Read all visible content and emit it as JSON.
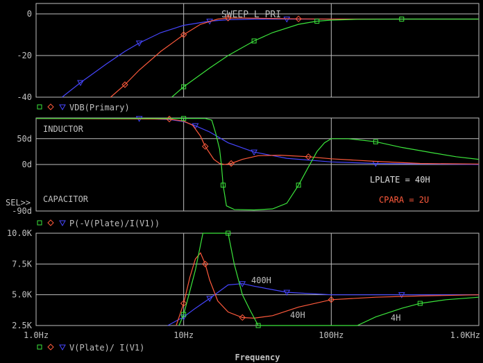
{
  "colors": {
    "background": "#000000",
    "frame": "#c0c0c0",
    "green": "#3ce63c",
    "red": "#ff5a3c",
    "blue": "#4646ff"
  },
  "sel_label": "SEL>>",
  "x_axis": {
    "label": "Frequency",
    "log": true,
    "range": [
      1,
      1000
    ],
    "ticks": [
      {
        "value": 1,
        "label": "1.0Hz"
      },
      {
        "value": 10,
        "label": "10Hz"
      },
      {
        "value": 100,
        "label": "100Hz"
      },
      {
        "value": 1000,
        "label": "1.0KHz"
      }
    ]
  },
  "chart_data": [
    {
      "type": "line",
      "title": "SWEEP L_PRI",
      "trace_label": "VDB(Primary)",
      "ylim": [
        -40,
        5
      ],
      "yticks": [
        {
          "value": 0,
          "label": "0"
        },
        {
          "value": -20,
          "label": "-20"
        },
        {
          "value": -40,
          "label": "-40"
        }
      ],
      "grid": true,
      "series": [
        {
          "color": "blue",
          "marker": "triangle",
          "points": [
            [
              1.5,
              -40
            ],
            [
              2,
              -33
            ],
            [
              3,
              -24
            ],
            [
              4,
              -18
            ],
            [
              5,
              -14
            ],
            [
              7,
              -9
            ],
            [
              10,
              -5.5
            ],
            [
              15,
              -3.5
            ],
            [
              20,
              -2.8
            ],
            [
              30,
              -2.5
            ],
            [
              50,
              -2.5
            ],
            [
              100,
              -2.5
            ],
            [
              300,
              -2.5
            ],
            [
              1000,
              -2.5
            ]
          ]
        },
        {
          "color": "red",
          "marker": "diamond",
          "points": [
            [
              3.2,
              -40
            ],
            [
              4,
              -34
            ],
            [
              5,
              -27
            ],
            [
              7,
              -18
            ],
            [
              10,
              -10
            ],
            [
              13,
              -5
            ],
            [
              17,
              -2.5
            ],
            [
              20,
              -2
            ],
            [
              25,
              -2
            ],
            [
              40,
              -2.2
            ],
            [
              60,
              -2.4
            ],
            [
              100,
              -2.5
            ],
            [
              1000,
              -2.5
            ]
          ]
        },
        {
          "color": "green",
          "marker": "square",
          "points": [
            [
              8.3,
              -40
            ],
            [
              10,
              -35
            ],
            [
              15,
              -26
            ],
            [
              20,
              -20
            ],
            [
              30,
              -13
            ],
            [
              40,
              -9
            ],
            [
              60,
              -5
            ],
            [
              80,
              -3.5
            ],
            [
              100,
              -3
            ],
            [
              150,
              -2.6
            ],
            [
              300,
              -2.5
            ],
            [
              1000,
              -2.5
            ]
          ]
        }
      ]
    },
    {
      "type": "line",
      "trace_label": "P(-V(Plate)/I(V1))",
      "ylim": [
        -90,
        90
      ],
      "yticks": [
        {
          "value": 50,
          "label": "50d"
        },
        {
          "value": 0,
          "label": "0d"
        },
        {
          "value": -90,
          "label": "-90d"
        }
      ],
      "annotations": [
        "INDUCTOR",
        "CAPACITOR",
        "LPLATE = 40H",
        "CPARA = 2U"
      ],
      "grid": true,
      "series": [
        {
          "color": "blue",
          "marker": "triangle",
          "points": [
            [
              1,
              89
            ],
            [
              5,
              89
            ],
            [
              8,
              87
            ],
            [
              10,
              83
            ],
            [
              12,
              75
            ],
            [
              15,
              63
            ],
            [
              20,
              42
            ],
            [
              30,
              24
            ],
            [
              50,
              12
            ],
            [
              100,
              5
            ],
            [
              200,
              2
            ],
            [
              500,
              1
            ],
            [
              1000,
              0
            ]
          ]
        },
        {
          "color": "red",
          "marker": "diamond",
          "points": [
            [
              1,
              89
            ],
            [
              8,
              88
            ],
            [
              10,
              84
            ],
            [
              11.5,
              76
            ],
            [
              13,
              55
            ],
            [
              14,
              35
            ],
            [
              16,
              10
            ],
            [
              17.5,
              2
            ],
            [
              19,
              0
            ],
            [
              21,
              2
            ],
            [
              25,
              10
            ],
            [
              32,
              17
            ],
            [
              45,
              18
            ],
            [
              70,
              15
            ],
            [
              100,
              11
            ],
            [
              200,
              6
            ],
            [
              400,
              2
            ],
            [
              1000,
              1
            ]
          ]
        },
        {
          "color": "green",
          "marker": "square",
          "points": [
            [
              1,
              89
            ],
            [
              10,
              89
            ],
            [
              14,
              89
            ],
            [
              15.5,
              86
            ],
            [
              16.5,
              60
            ],
            [
              17.5,
              30
            ],
            [
              18,
              0
            ],
            [
              18.5,
              -40
            ],
            [
              19.5,
              -80
            ],
            [
              22,
              -87
            ],
            [
              30,
              -88
            ],
            [
              40,
              -86
            ],
            [
              50,
              -75
            ],
            [
              60,
              -40
            ],
            [
              70,
              -5
            ],
            [
              80,
              25
            ],
            [
              90,
              42
            ],
            [
              100,
              50
            ],
            [
              130,
              50
            ],
            [
              200,
              44
            ],
            [
              300,
              33
            ],
            [
              500,
              22
            ],
            [
              700,
              15
            ],
            [
              1000,
              10
            ]
          ]
        }
      ]
    },
    {
      "type": "line",
      "trace_label": "V(Plate)/ I(V1)",
      "ylim": [
        2.5,
        10
      ],
      "yticks": [
        {
          "value": 10,
          "label": "10.0K"
        },
        {
          "value": 7.5,
          "label": "7.5K"
        },
        {
          "value": 5,
          "label": "5.0K"
        },
        {
          "value": 2.5,
          "label": "2.5K"
        }
      ],
      "annotations": [
        "400H",
        "40H",
        "4H"
      ],
      "grid": true,
      "series": [
        {
          "color": "blue",
          "marker": "triangle",
          "points": [
            [
              7.8,
              2.5
            ],
            [
              10,
              3.2
            ],
            [
              12,
              3.9
            ],
            [
              15,
              4.7
            ],
            [
              20,
              5.8
            ],
            [
              25,
              5.9
            ],
            [
              30,
              5.7
            ],
            [
              50,
              5.2
            ],
            [
              100,
              5.0
            ],
            [
              300,
              5.0
            ],
            [
              1000,
              5.0
            ]
          ]
        },
        {
          "color": "red",
          "marker": "diamond",
          "points": [
            [
              8.9,
              2.5
            ],
            [
              10,
              4.3
            ],
            [
              11,
              6.4
            ],
            [
              12,
              7.9
            ],
            [
              13,
              8.4
            ],
            [
              14,
              7.5
            ],
            [
              15,
              6.2
            ],
            [
              17,
              4.5
            ],
            [
              20,
              3.6
            ],
            [
              25,
              3.15
            ],
            [
              30,
              3.1
            ],
            [
              40,
              3.3
            ],
            [
              60,
              4.0
            ],
            [
              100,
              4.6
            ],
            [
              200,
              4.8
            ],
            [
              400,
              4.9
            ],
            [
              1000,
              5.0
            ]
          ]
        },
        {
          "color": "green",
          "marker": "square",
          "points": [
            [
              9.3,
              2.5
            ],
            [
              10,
              3.4
            ],
            [
              12,
              7
            ],
            [
              13.5,
              10
            ],
            [
              18,
              10
            ],
            [
              20,
              10
            ],
            [
              22,
              7.5
            ],
            [
              25,
              5
            ],
            [
              28,
              3.8
            ],
            [
              32,
              2.5
            ],
            [
              150,
              2.5
            ],
            [
              200,
              3.2
            ],
            [
              300,
              3.9
            ],
            [
              400,
              4.3
            ],
            [
              600,
              4.6
            ],
            [
              1000,
              4.8
            ]
          ]
        }
      ]
    }
  ]
}
